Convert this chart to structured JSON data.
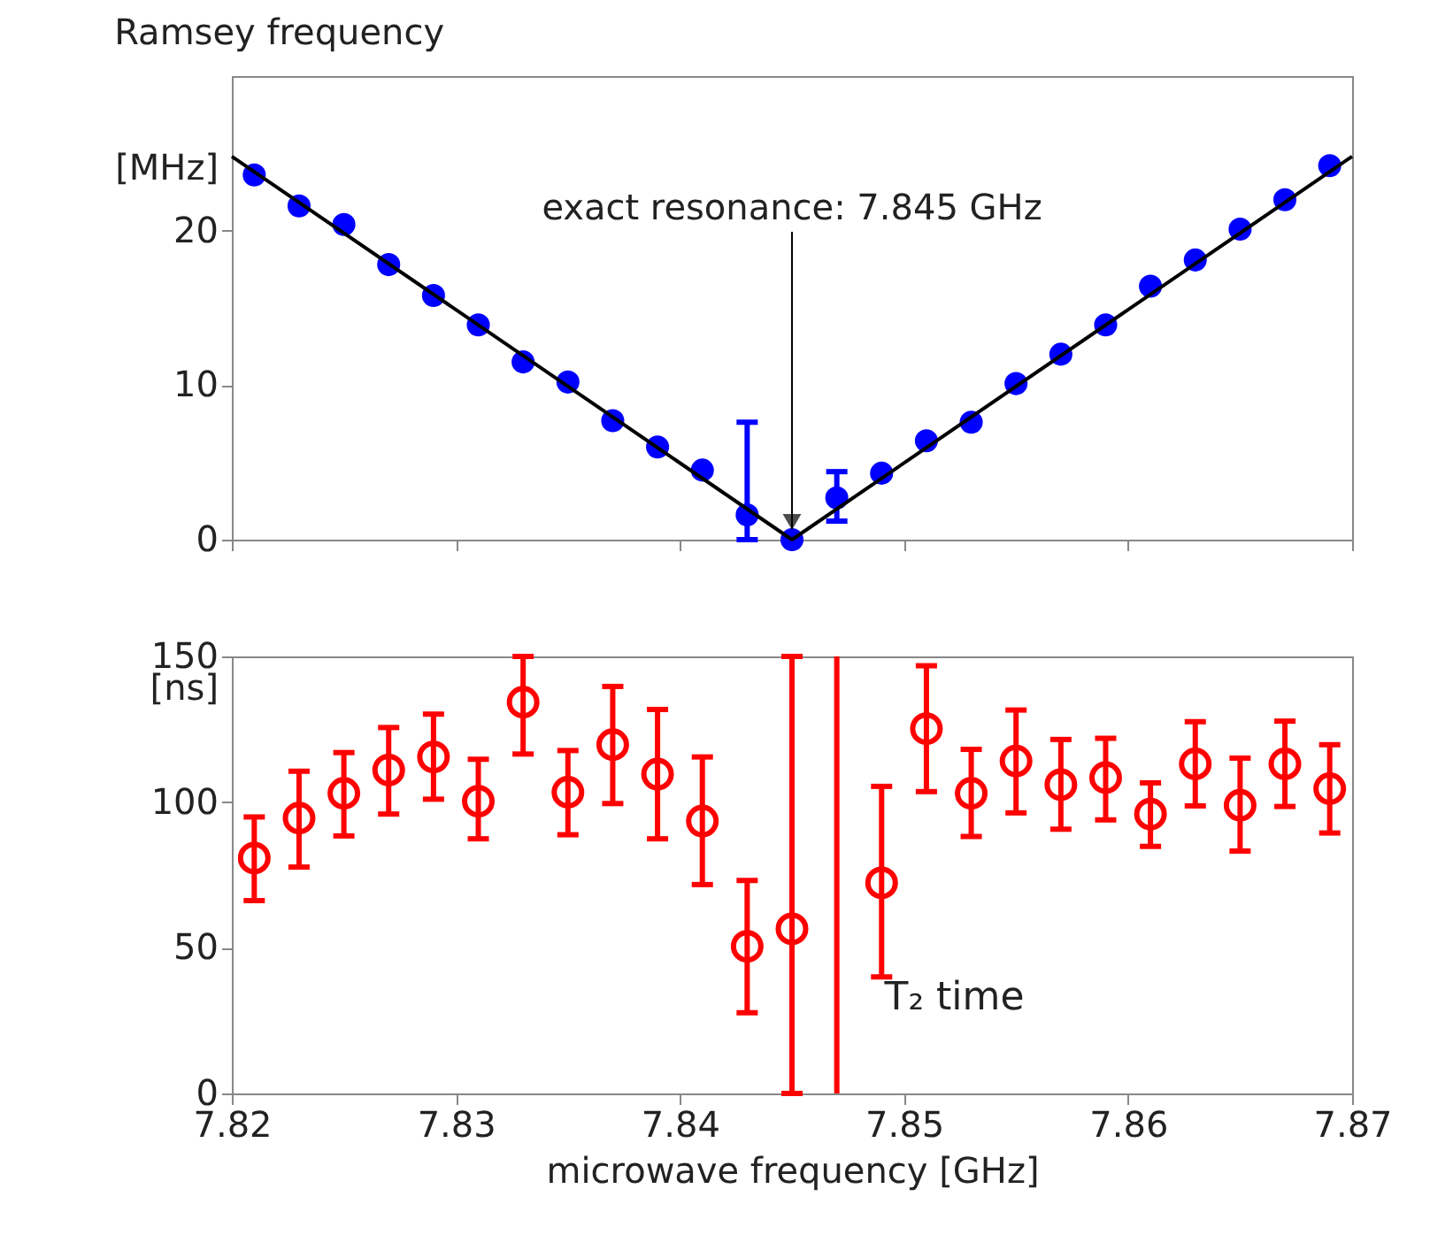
{
  "chart_data": [
    {
      "type": "scatter",
      "title": "Ramsey frequency",
      "ylabel": "[MHz]",
      "xlim": [
        7.82,
        7.87
      ],
      "xticks": [
        7.82,
        7.83,
        7.84,
        7.85,
        7.86,
        7.87
      ],
      "ylim": [
        0,
        30
      ],
      "yticks": [
        0,
        10,
        20
      ],
      "tick_labels": "y",
      "grid": false,
      "annotations": [
        {
          "text": "exact resonance: 7.845 GHz",
          "x": 7.845,
          "y": 0
        }
      ],
      "series": [
        {
          "type": "scatter",
          "color": "#0000ff",
          "marker": "circle",
          "x": [
            7.821,
            7.823,
            7.825,
            7.827,
            7.829,
            7.831,
            7.833,
            7.835,
            7.837,
            7.839,
            7.841,
            7.843,
            7.845,
            7.847,
            7.849,
            7.851,
            7.853,
            7.855,
            7.857,
            7.859,
            7.861,
            7.863,
            7.865,
            7.867,
            7.869
          ],
          "values": [
            23.6,
            21.6,
            20.4,
            17.8,
            15.8,
            13.9,
            11.5,
            10.2,
            7.7,
            6.0,
            4.5,
            1.6,
            0,
            2.7,
            4.3,
            6.4,
            7.6,
            10.1,
            12.0,
            13.9,
            16.4,
            18.1,
            20.1,
            22.0,
            24.2
          ],
          "errors": [
            null,
            null,
            null,
            null,
            null,
            null,
            null,
            null,
            null,
            null,
            null,
            [
              0,
              7.6
            ],
            null,
            [
              1.2,
              4.4
            ],
            null,
            null,
            null,
            null,
            null,
            null,
            null,
            null,
            null,
            null,
            null
          ]
        },
        {
          "type": "line",
          "color": "#000000",
          "x": [
            7.82,
            7.845,
            7.87
          ],
          "values": [
            24.8,
            0,
            24.8
          ]
        }
      ]
    },
    {
      "type": "scatter",
      "xlabel": "microwave frequency [GHz]",
      "ylabel": "[ns]",
      "xlim": [
        7.82,
        7.87
      ],
      "xticks": [
        7.82,
        7.83,
        7.84,
        7.85,
        7.86,
        7.87
      ],
      "ylim": [
        0,
        150
      ],
      "yticks": [
        0,
        50,
        100,
        150
      ],
      "grid": false,
      "ref_lines": [
        {
          "axis": "x",
          "value": 7.847,
          "color": "#ff0000"
        }
      ],
      "annotations": [
        "T₂ time"
      ],
      "series": [
        {
          "type": "scatter",
          "color": "#ff0000",
          "marker": "circle",
          "x": [
            7.821,
            7.823,
            7.825,
            7.827,
            7.829,
            7.831,
            7.833,
            7.835,
            7.837,
            7.839,
            7.841,
            7.843,
            7.845,
            7.847,
            7.849,
            7.851,
            7.853,
            7.855,
            7.857,
            7.859,
            7.861,
            7.863,
            7.865,
            7.867,
            7.869
          ],
          "values": [
            80.8,
            94.5,
            103,
            111,
            115.5,
            100.3,
            134.3,
            103.4,
            119.7,
            109.6,
            93.5,
            50.5,
            56.5,
            null,
            72.3,
            125.2,
            103,
            114.1,
            106,
            108.4,
            95.9,
            113.1,
            98.9,
            113.1,
            104.6
          ],
          "errors": [
            [
              66.2,
              94.9
            ],
            [
              77.7,
              110.6
            ],
            [
              88.4,
              117
            ],
            [
              95.9,
              125.6
            ],
            [
              101,
              130.2
            ],
            [
              87.4,
              114.7
            ],
            [
              116.5,
              150
            ],
            [
              88.8,
              117.7
            ],
            [
              99.5,
              139.7
            ],
            [
              87.4,
              131.8
            ],
            [
              71.7,
              115.5
            ],
            [
              27.7,
              73.1
            ],
            [
              0,
              150
            ],
            null,
            [
              40,
              105.4
            ],
            [
              103.6,
              146.8
            ],
            [
              88.2,
              118.1
            ],
            [
              96.3,
              131.6
            ],
            [
              90.7,
              121.5
            ],
            [
              93.9,
              121.9
            ],
            [
              84.8,
              106.6
            ],
            [
              98.7,
              127.6
            ],
            [
              83.2,
              115.1
            ],
            [
              98.5,
              127.8
            ],
            [
              89.4,
              119.7
            ]
          ]
        }
      ]
    }
  ]
}
